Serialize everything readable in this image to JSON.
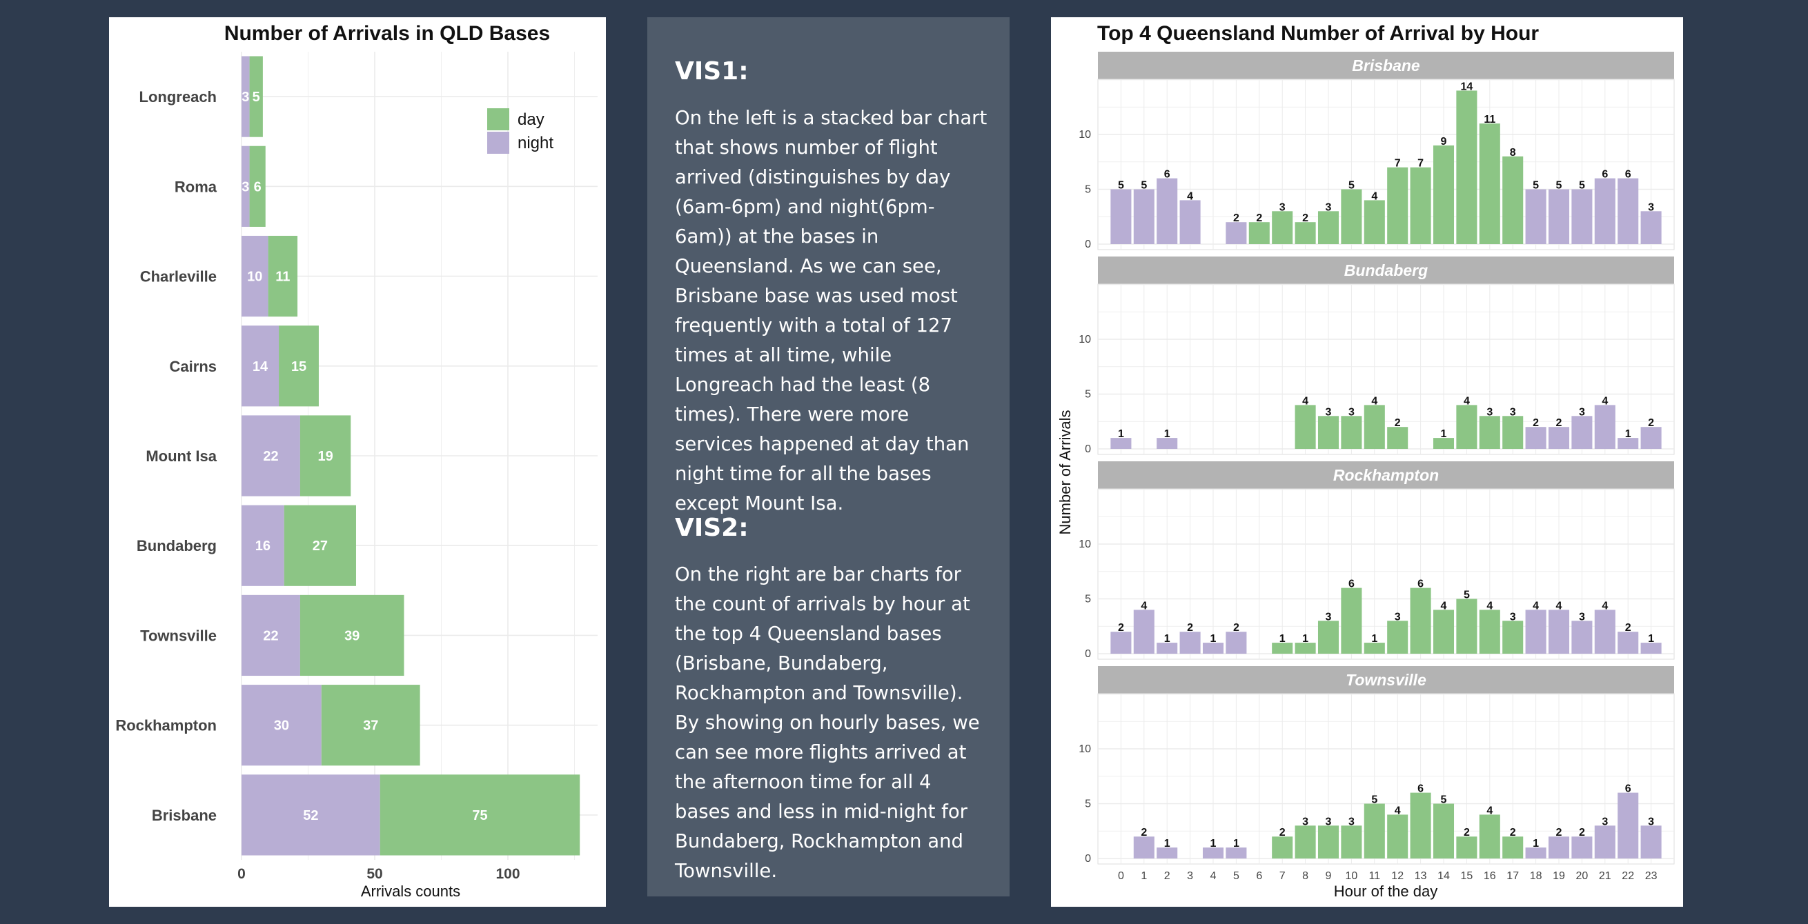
{
  "colors": {
    "day": "#8cc585",
    "night": "#b8aed4",
    "strip": "#b3b3b3",
    "grid": "#ebebeb"
  },
  "vis1": {
    "heading": "VIS1:",
    "text": "On the left is a stacked bar chart that shows number of flight arrived (distinguishes by day (6am-6pm) and night(6pm-6am)) at the bases in Queensland. As we can see, Brisbane base was used most frequently with a total of 127 times at all time, while Longreach had the least (8 times). There were more services happened at day than night time for all the bases except Mount Isa."
  },
  "vis2": {
    "heading": "VIS2:",
    "text": "On the right are bar charts for the count of arrivals by hour at the top 4 Queensland bases (Brisbane, Bundaberg, Rockhampton and Townsville). By showing on hourly bases, we can see more flights arrived at the afternoon time for all 4 bases and less in mid-night for Bundaberg, Rockhampton and Townsville."
  },
  "chart_data": [
    {
      "type": "bar",
      "orientation": "horizontal",
      "stacked": true,
      "title": "Number of Arrivals in QLD Bases",
      "xlabel": "Arrivals counts",
      "ylabel": "",
      "xlim": [
        0,
        125
      ],
      "xticks": [
        0,
        50,
        100
      ],
      "categories": [
        "Longreach",
        "Roma",
        "Charleville",
        "Cairns",
        "Mount Isa",
        "Bundaberg",
        "Townsville",
        "Rockhampton",
        "Brisbane"
      ],
      "series": [
        {
          "name": "night",
          "values": [
            3,
            3,
            10,
            14,
            22,
            16,
            22,
            30,
            52
          ]
        },
        {
          "name": "day",
          "values": [
            5,
            6,
            11,
            15,
            19,
            27,
            39,
            37,
            75
          ]
        }
      ],
      "legend": {
        "position": "top-right",
        "entries": [
          "day",
          "night"
        ]
      }
    },
    {
      "type": "bar",
      "faceted": true,
      "title": "Top 4 Queensland Number of Arrival by Hour",
      "xlabel": "Hour of the day",
      "ylabel": "Number of Arrivals",
      "ylim": [
        0,
        15
      ],
      "yticks": [
        0,
        5,
        10
      ],
      "x": [
        0,
        1,
        2,
        3,
        4,
        5,
        6,
        7,
        8,
        9,
        10,
        11,
        12,
        13,
        14,
        15,
        16,
        17,
        18,
        19,
        20,
        21,
        22,
        23
      ],
      "day_hours": [
        6,
        17
      ],
      "facets": [
        {
          "name": "Brisbane",
          "values": [
            5,
            5,
            6,
            4,
            null,
            2,
            2,
            3,
            2,
            3,
            5,
            4,
            7,
            7,
            9,
            14,
            11,
            8,
            5,
            5,
            5,
            6,
            6,
            3
          ]
        },
        {
          "name": "Bundaberg",
          "values": [
            1,
            null,
            1,
            null,
            null,
            null,
            null,
            null,
            4,
            3,
            3,
            4,
            2,
            null,
            1,
            4,
            3,
            3,
            2,
            2,
            3,
            4,
            1,
            2
          ]
        },
        {
          "name": "Rockhampton",
          "values": [
            2,
            4,
            1,
            2,
            1,
            2,
            null,
            1,
            1,
            3,
            6,
            1,
            3,
            6,
            4,
            5,
            4,
            3,
            4,
            4,
            3,
            4,
            2,
            1
          ]
        },
        {
          "name": "Townsville",
          "values": [
            null,
            2,
            1,
            null,
            1,
            1,
            null,
            2,
            3,
            3,
            3,
            5,
            4,
            6,
            5,
            2,
            4,
            2,
            1,
            2,
            2,
            3,
            6,
            3
          ]
        }
      ]
    }
  ]
}
